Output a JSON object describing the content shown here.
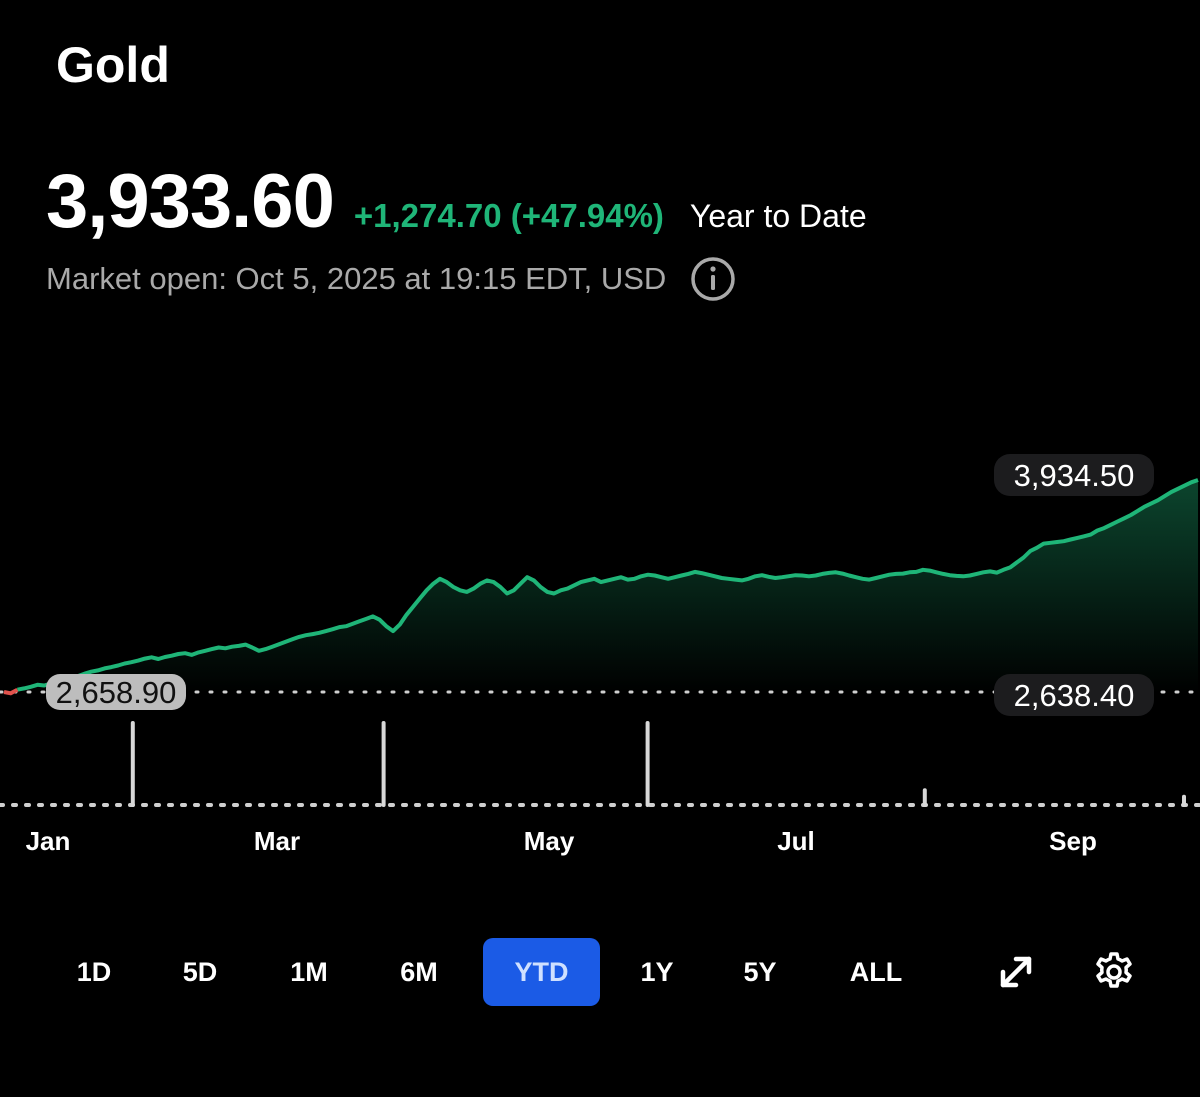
{
  "header": {
    "title": "Gold",
    "price": "3,933.60",
    "change": "+1,274.70 (+47.94%)",
    "period": "Year to Date",
    "status": "Market open: Oct 5, 2025 at 19:15 EDT, USD",
    "info_icon": "info-circle-icon"
  },
  "colors": {
    "up": "#1fb578",
    "down": "#e0524c",
    "active_range": "#1b5be6",
    "muted_text": "#a9a9a9"
  },
  "chart_data": {
    "type": "area",
    "x_tick_labels": [
      "Jan",
      "Mar",
      "May",
      "Jul",
      "Sep"
    ],
    "reference_label": "2,658.90",
    "high_label": "3,934.50",
    "previous_label": "2,638.40",
    "y_range": [
      2600,
      4000
    ],
    "series": [
      {
        "values": [
          2638,
          2630,
          2652,
          2660,
          2670,
          2682,
          2678,
          2690,
          2700,
          2712,
          2720,
          2735,
          2750,
          2762,
          2770,
          2782,
          2790,
          2800,
          2812,
          2820,
          2830,
          2842,
          2850,
          2840,
          2852,
          2860,
          2870,
          2875,
          2865,
          2880,
          2890,
          2900,
          2910,
          2905,
          2915,
          2920,
          2928,
          2910,
          2890,
          2900,
          2915,
          2930,
          2945,
          2960,
          2975,
          2985,
          2992,
          3000,
          3010,
          3022,
          3035,
          3040,
          3055,
          3070,
          3085,
          3100,
          3080,
          3040,
          3010,
          3050,
          3110,
          3160,
          3210,
          3260,
          3300,
          3330,
          3310,
          3280,
          3260,
          3250,
          3270,
          3300,
          3320,
          3310,
          3280,
          3240,
          3260,
          3300,
          3340,
          3320,
          3280,
          3250,
          3240,
          3260,
          3270,
          3290,
          3310,
          3320,
          3330,
          3310,
          3320,
          3330,
          3340,
          3325,
          3330,
          3345,
          3355,
          3350,
          3340,
          3330,
          3340,
          3350,
          3360,
          3372,
          3365,
          3355,
          3345,
          3335,
          3330,
          3325,
          3320,
          3330,
          3345,
          3352,
          3342,
          3335,
          3340,
          3346,
          3352,
          3350,
          3345,
          3350,
          3360,
          3366,
          3370,
          3362,
          3350,
          3340,
          3330,
          3325,
          3335,
          3345,
          3355,
          3360,
          3362,
          3370,
          3372,
          3385,
          3380,
          3370,
          3360,
          3352,
          3348,
          3345,
          3350,
          3360,
          3370,
          3375,
          3368,
          3385,
          3400,
          3430,
          3460,
          3500,
          3520,
          3545,
          3550,
          3555,
          3560,
          3570,
          3580,
          3590,
          3600,
          3625,
          3640,
          3660,
          3680,
          3700,
          3720,
          3745,
          3770,
          3790,
          3810,
          3835,
          3860,
          3880,
          3900,
          3920,
          3934
        ]
      }
    ],
    "volume_spikes": [
      {
        "month_pos": 0.094,
        "height": 1.0
      },
      {
        "month_pos": 0.303,
        "height": 1.0
      },
      {
        "month_pos": 0.523,
        "height": 1.0
      },
      {
        "month_pos": 0.754,
        "height": 0.18
      },
      {
        "month_pos": 0.97,
        "height": 0.1
      }
    ],
    "grid": false
  },
  "ranges": {
    "items": [
      {
        "label": "1D",
        "active": false
      },
      {
        "label": "5D",
        "active": false
      },
      {
        "label": "1M",
        "active": false
      },
      {
        "label": "6M",
        "active": false
      },
      {
        "label": "YTD",
        "active": true
      },
      {
        "label": "1Y",
        "active": false
      },
      {
        "label": "5Y",
        "active": false
      },
      {
        "label": "ALL",
        "active": false
      }
    ],
    "expand_icon": "expand-arrows-icon",
    "settings_icon": "gear-icon"
  }
}
